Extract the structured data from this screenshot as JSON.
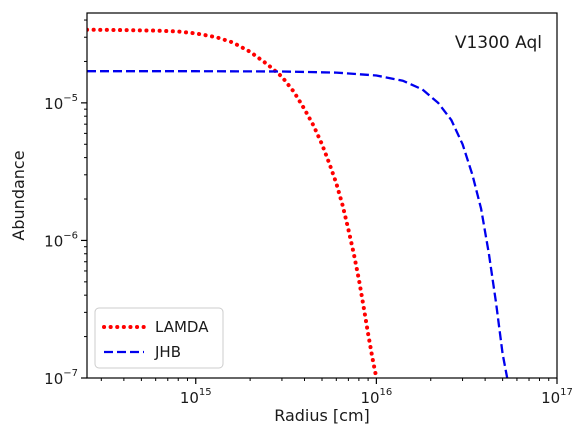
{
  "chart_data": {
    "type": "line",
    "annotation": "V1300 Aql",
    "xlabel": "Radius [cm]",
    "ylabel": "Abundance",
    "xscale": "log",
    "yscale": "log",
    "xlim": [
      250000000000000.0,
      1e+17
    ],
    "ylim": [
      1e-07,
      4.5e-05
    ],
    "grid": false,
    "legend_position": "lower-left",
    "x_ticks": [
      {
        "base": "10",
        "exp": "15",
        "value": 1000000000000000.0
      },
      {
        "base": "10",
        "exp": "16",
        "value": 1e+16
      },
      {
        "base": "10",
        "exp": "17",
        "value": 1e+17
      }
    ],
    "y_ticks": [
      {
        "base": "10",
        "exp": "−5",
        "value": 1e-05
      },
      {
        "base": "10",
        "exp": "−6",
        "value": 1e-06
      },
      {
        "base": "10",
        "exp": "−7",
        "value": 1e-07
      }
    ],
    "series": [
      {
        "name": "LAMDA",
        "color": "#ff0000",
        "style": "dotted",
        "x": [
          250000000000000.0,
          400000000000000.0,
          600000000000000.0,
          800000000000000.0,
          1000000000000000.0,
          1300000000000000.0,
          1600000000000000.0,
          2000000000000000.0,
          2500000000000000.0,
          3000000000000000.0,
          3500000000000000.0,
          4000000000000000.0,
          4500000000000000.0,
          5000000000000000.0,
          5500000000000000.0,
          6000000000000000.0,
          6500000000000000.0,
          7000000000000000.0,
          7500000000000000.0,
          8000000000000000.0,
          8500000000000000.0,
          9000000000000000.0,
          9500000000000000.0,
          1e+16
        ],
        "y": [
          3.4e-05,
          3.38e-05,
          3.35e-05,
          3.3e-05,
          3.2e-05,
          3e-05,
          2.75e-05,
          2.35e-05,
          1.9e-05,
          1.55e-05,
          1.2e-05,
          9e-06,
          6.8e-06,
          5e-06,
          3.6e-06,
          2.6e-06,
          1.8e-06,
          1.2e-06,
          8e-07,
          5.2e-07,
          3.3e-07,
          2.1e-07,
          1.4e-07,
          1e-07
        ]
      },
      {
        "name": "JHB",
        "color": "#0000ee",
        "style": "dashed",
        "x": [
          250000000000000.0,
          1000000000000000.0,
          3000000000000000.0,
          6000000000000000.0,
          1e+16,
          1.4e+16,
          1.8e+16,
          2.2e+16,
          2.6e+16,
          3e+16,
          3.4e+16,
          3.8e+16,
          4.2e+16,
          4.6e+16,
          5e+16,
          5.3e+16
        ],
        "y": [
          1.7e-05,
          1.7e-05,
          1.69e-05,
          1.66e-05,
          1.58e-05,
          1.45e-05,
          1.25e-05,
          1e-05,
          7.5e-06,
          5e-06,
          3e-06,
          1.7e-06,
          8e-07,
          3.5e-07,
          1.5e-07,
          1e-07
        ]
      }
    ]
  }
}
